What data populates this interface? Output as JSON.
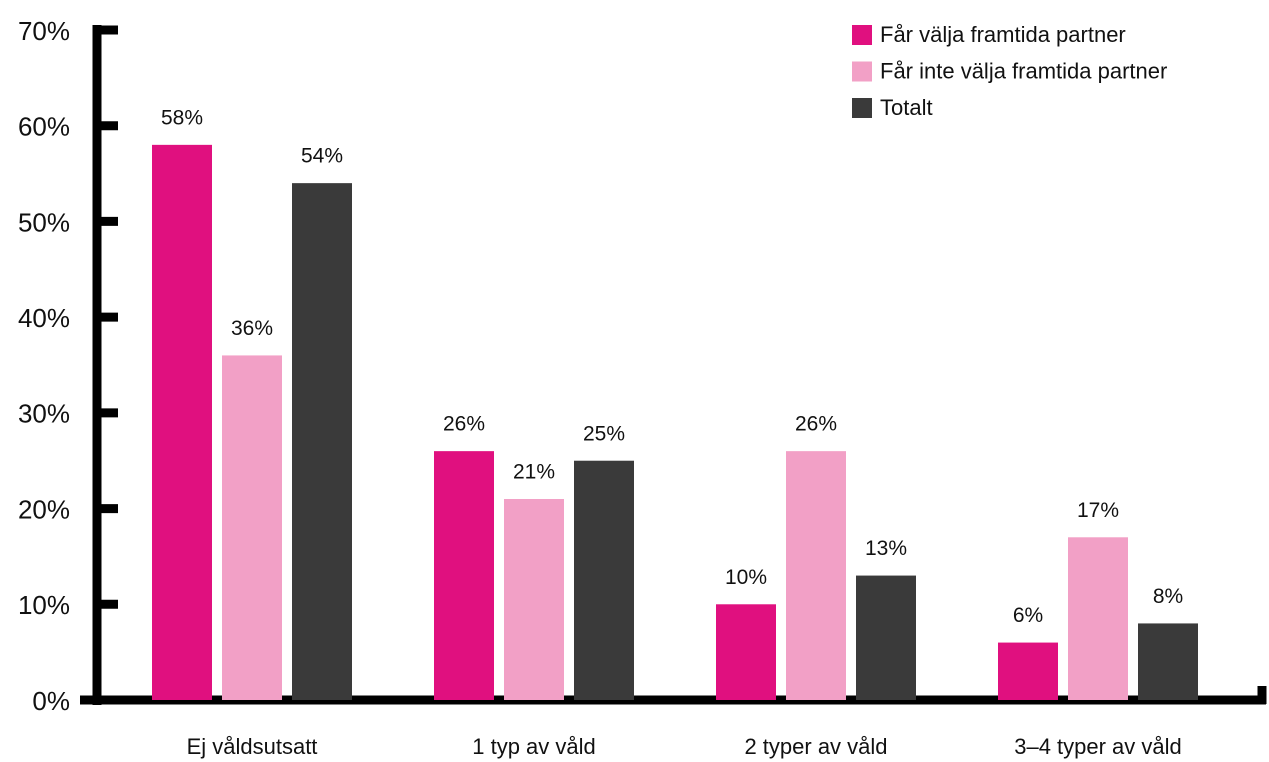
{
  "chart_data": {
    "type": "bar",
    "categories": [
      "Ej våldsutsatt",
      "1 typ av våld",
      "2 typer av våld",
      "3–4 typer av våld"
    ],
    "series": [
      {
        "name": "Får välja framtida partner",
        "color": "#e0107f",
        "values": [
          58,
          26,
          10,
          6
        ],
        "value_labels": [
          "58%",
          "26%",
          "10%",
          "6%"
        ]
      },
      {
        "name": "Får inte välja framtida partner",
        "color": "#f2a0c6",
        "values": [
          36,
          21,
          26,
          17
        ],
        "value_labels": [
          "36%",
          "21%",
          "26%",
          "17%"
        ]
      },
      {
        "name": "Totalt",
        "color": "#3a3a3a",
        "values": [
          54,
          25,
          13,
          8
        ],
        "value_labels": [
          "54%",
          "25%",
          "13%",
          "8%"
        ]
      }
    ],
    "ylim": [
      0,
      70
    ],
    "yticks": [
      {
        "value": 0,
        "label": "0%"
      },
      {
        "value": 10,
        "label": "10%"
      },
      {
        "value": 20,
        "label": "20%"
      },
      {
        "value": 30,
        "label": "30%"
      },
      {
        "value": 40,
        "label": "40%"
      },
      {
        "value": 50,
        "label": "50%"
      },
      {
        "value": 60,
        "label": "60%"
      },
      {
        "value": 70,
        "label": "70%"
      }
    ],
    "legend": "top-right",
    "grid": false
  }
}
